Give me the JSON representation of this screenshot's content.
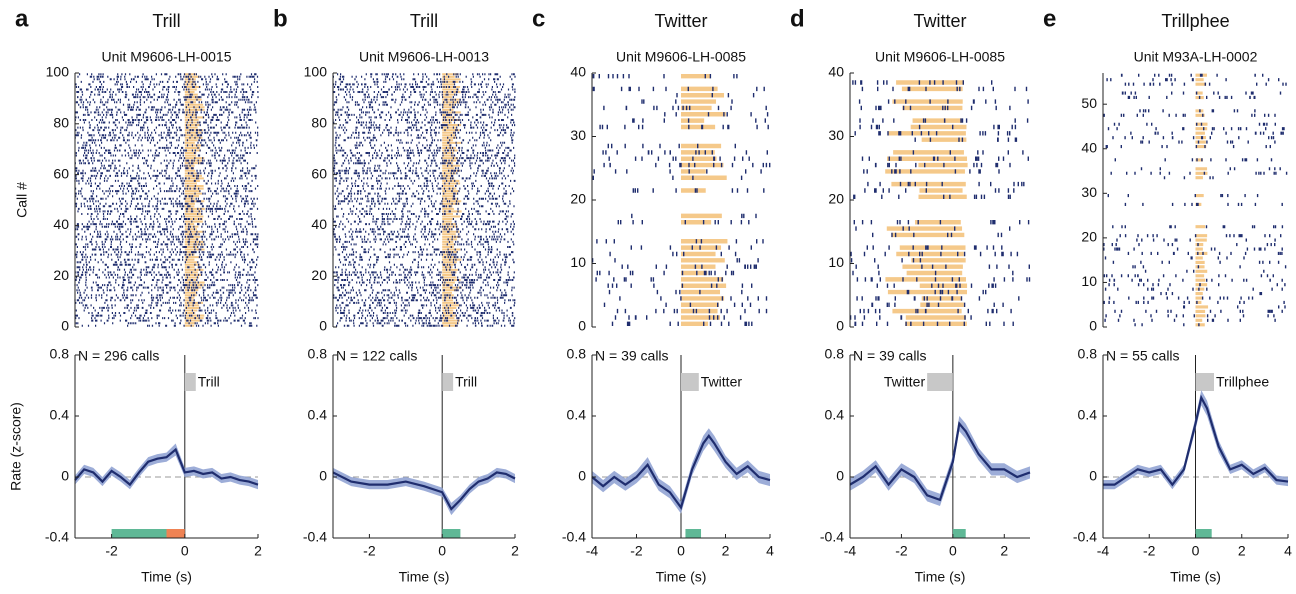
{
  "chart_data": [
    {
      "type": "raster",
      "panel_label": "a",
      "title": "Trill",
      "subtitle": "Unit M9606-LH-0015",
      "ylabel": "Call #",
      "xlim": [
        -3,
        2
      ],
      "ylim": [
        0,
        100
      ],
      "yticks": [
        0,
        20,
        40,
        60,
        80,
        100
      ],
      "spike_color": "#1f2d6e",
      "call_color": "#f5c98a"
    },
    {
      "type": "line",
      "annotation": "N = 296 calls",
      "ylabel": "Rate (z-score)",
      "xlabel": "Time (s)",
      "xlim": [
        -3,
        2
      ],
      "xticks": [
        -2,
        0,
        2
      ],
      "ylim": [
        -0.4,
        0.8
      ],
      "yticks": [
        -0.4,
        0,
        0.4,
        0.8
      ],
      "color": "#1f2d6e",
      "band_color": "#8c9fd1",
      "stimulus": {
        "label": "Trill",
        "start": 0,
        "end": 0.3,
        "color": "#c8c8c8",
        "label_side": "right"
      },
      "segments": [
        {
          "start": -2,
          "end": -0.5,
          "color": "#5fb896"
        },
        {
          "start": -0.5,
          "end": 0,
          "color": "#ef8354"
        }
      ],
      "x": [
        -3,
        -2.75,
        -2.5,
        -2.25,
        -2,
        -1.75,
        -1.5,
        -1.25,
        -1,
        -0.75,
        -0.5,
        -0.25,
        0,
        0.25,
        0.5,
        0.75,
        1,
        1.25,
        1.5,
        1.75,
        2
      ],
      "values": [
        -0.02,
        0.05,
        0.03,
        -0.03,
        0.04,
        0.0,
        -0.05,
        0.03,
        0.1,
        0.12,
        0.13,
        0.18,
        0.03,
        0.04,
        0.02,
        0.03,
        -0.01,
        0.0,
        -0.02,
        -0.03,
        -0.05
      ],
      "error": [
        0.03,
        0.03,
        0.03,
        0.03,
        0.03,
        0.03,
        0.03,
        0.03,
        0.03,
        0.03,
        0.03,
        0.04,
        0.03,
        0.03,
        0.03,
        0.03,
        0.03,
        0.03,
        0.03,
        0.03,
        0.03
      ]
    },
    {
      "type": "raster",
      "panel_label": "b",
      "title": "Trill",
      "subtitle": "Unit M9606-LH-0013",
      "xlim": [
        -3,
        2
      ],
      "ylim": [
        0,
        100
      ],
      "yticks": [
        0,
        20,
        40,
        60,
        80,
        100
      ],
      "spike_color": "#1f2d6e",
      "call_color": "#f5c98a"
    },
    {
      "type": "line",
      "annotation": "N = 122 calls",
      "xlabel": "Time (s)",
      "xlim": [
        -3,
        2
      ],
      "xticks": [
        -2,
        0,
        2
      ],
      "ylim": [
        -0.4,
        0.8
      ],
      "yticks": [
        -0.4,
        0,
        0.4,
        0.8
      ],
      "color": "#1f2d6e",
      "band_color": "#8c9fd1",
      "stimulus": {
        "label": "Trill",
        "start": 0,
        "end": 0.3,
        "color": "#c8c8c8",
        "label_side": "right"
      },
      "segments": [
        {
          "start": 0,
          "end": 0.5,
          "color": "#5fb896"
        }
      ],
      "x": [
        -3,
        -2.5,
        -2,
        -1.5,
        -1,
        -0.5,
        0,
        0.25,
        0.5,
        0.75,
        1,
        1.25,
        1.5,
        1.75,
        2
      ],
      "values": [
        0.03,
        -0.03,
        -0.05,
        -0.05,
        -0.03,
        -0.06,
        -0.1,
        -0.21,
        -0.15,
        -0.08,
        -0.03,
        -0.01,
        0.03,
        0.02,
        -0.01
      ],
      "error": [
        0.03,
        0.03,
        0.03,
        0.03,
        0.03,
        0.03,
        0.03,
        0.04,
        0.03,
        0.03,
        0.03,
        0.03,
        0.03,
        0.03,
        0.03
      ]
    },
    {
      "type": "raster",
      "panel_label": "c",
      "title": "Twitter",
      "subtitle": "Unit M9606-LH-0085",
      "xlim": [
        -4,
        4
      ],
      "ylim": [
        0,
        40
      ],
      "yticks": [
        0,
        10,
        20,
        30,
        40
      ],
      "spike_color": "#1f2d6e",
      "call_color": "#f5c98a"
    },
    {
      "type": "line",
      "annotation": "N = 39 calls",
      "xlabel": "Time (s)",
      "xlim": [
        -4,
        4
      ],
      "xticks": [
        -4,
        -2,
        0,
        2,
        4
      ],
      "ylim": [
        -0.4,
        0.8
      ],
      "yticks": [
        -0.4,
        0,
        0.4,
        0.8
      ],
      "color": "#1f2d6e",
      "band_color": "#8c9fd1",
      "stimulus": {
        "label": "Twitter",
        "start": 0,
        "end": 0.8,
        "color": "#c8c8c8",
        "label_side": "right"
      },
      "segments": [
        {
          "start": 0.2,
          "end": 0.9,
          "color": "#5fb896"
        }
      ],
      "x": [
        -4,
        -3.5,
        -3,
        -2.5,
        -2,
        -1.5,
        -1,
        -0.5,
        0,
        0.5,
        1,
        1.25,
        1.5,
        2,
        2.5,
        3,
        3.5,
        4
      ],
      "values": [
        0.0,
        -0.06,
        0.0,
        -0.05,
        0.0,
        0.08,
        -0.05,
        -0.1,
        -0.2,
        0.05,
        0.22,
        0.27,
        0.22,
        0.1,
        0.02,
        0.07,
        0.0,
        -0.02
      ],
      "error": [
        0.04,
        0.04,
        0.04,
        0.04,
        0.04,
        0.05,
        0.04,
        0.04,
        0.04,
        0.04,
        0.05,
        0.05,
        0.05,
        0.04,
        0.04,
        0.04,
        0.04,
        0.04
      ]
    },
    {
      "type": "raster",
      "panel_label": "d",
      "title": "Twitter",
      "subtitle": "Unit M9606-LH-0085",
      "xlim": [
        -4,
        3
      ],
      "ylim": [
        0,
        40
      ],
      "yticks": [
        0,
        10,
        20,
        30,
        40
      ],
      "spike_color": "#1f2d6e",
      "call_color": "#f5c98a"
    },
    {
      "type": "line",
      "annotation": "N = 39 calls",
      "xlabel": "Time (s)",
      "xlim": [
        -4,
        3
      ],
      "xticks": [
        -4,
        -2,
        0,
        2
      ],
      "ylim": [
        -0.4,
        0.8
      ],
      "yticks": [
        -0.4,
        0,
        0.4,
        0.8
      ],
      "color": "#1f2d6e",
      "band_color": "#8c9fd1",
      "stimulus": {
        "label": "Twitter",
        "start": -1,
        "end": 0,
        "color": "#c8c8c8",
        "label_side": "left"
      },
      "segments": [
        {
          "start": 0,
          "end": 0.5,
          "color": "#5fb896"
        }
      ],
      "x": [
        -4,
        -3.5,
        -3,
        -2.5,
        -2,
        -1.5,
        -1,
        -0.5,
        0,
        0.25,
        0.5,
        1,
        1.5,
        2,
        2.5,
        3
      ],
      "values": [
        -0.05,
        0.0,
        0.07,
        -0.05,
        0.05,
        0.0,
        -0.12,
        -0.15,
        0.1,
        0.35,
        0.3,
        0.15,
        0.05,
        0.05,
        0.0,
        0.03
      ],
      "error": [
        0.04,
        0.04,
        0.04,
        0.04,
        0.04,
        0.04,
        0.04,
        0.04,
        0.04,
        0.05,
        0.05,
        0.04,
        0.04,
        0.04,
        0.04,
        0.04
      ]
    },
    {
      "type": "raster",
      "panel_label": "e",
      "title": "Trillphee",
      "subtitle": "Unit M93A-LH-0002",
      "xlim": [
        -4,
        4
      ],
      "ylim": [
        0,
        57
      ],
      "yticks": [
        0,
        10,
        20,
        30,
        40,
        50
      ],
      "spike_color": "#1f2d6e",
      "call_color": "#f5c98a"
    },
    {
      "type": "line",
      "annotation": "N = 55 calls",
      "xlabel": "Time (s)",
      "xlim": [
        -4,
        4
      ],
      "xticks": [
        -4,
        -2,
        0,
        2,
        4
      ],
      "ylim": [
        -0.4,
        0.8
      ],
      "yticks": [
        -0.4,
        0,
        0.4,
        0.8
      ],
      "color": "#1f2d6e",
      "band_color": "#8c9fd1",
      "stimulus": {
        "label": "Trillphee",
        "start": 0,
        "end": 0.8,
        "color": "#c8c8c8",
        "label_side": "right"
      },
      "segments": [
        {
          "start": 0,
          "end": 0.7,
          "color": "#5fb896"
        }
      ],
      "x": [
        -4,
        -3.5,
        -3,
        -2.5,
        -2,
        -1.5,
        -1,
        -0.5,
        0,
        0.25,
        0.5,
        1,
        1.5,
        2,
        2.5,
        3,
        3.5,
        4
      ],
      "values": [
        -0.05,
        -0.05,
        0.0,
        0.05,
        0.03,
        0.05,
        -0.05,
        0.05,
        0.35,
        0.52,
        0.45,
        0.2,
        0.05,
        0.08,
        0.02,
        0.06,
        -0.02,
        -0.03
      ],
      "error": [
        0.03,
        0.03,
        0.03,
        0.03,
        0.03,
        0.03,
        0.03,
        0.03,
        0.04,
        0.05,
        0.05,
        0.04,
        0.03,
        0.03,
        0.03,
        0.03,
        0.03,
        0.03
      ]
    }
  ]
}
